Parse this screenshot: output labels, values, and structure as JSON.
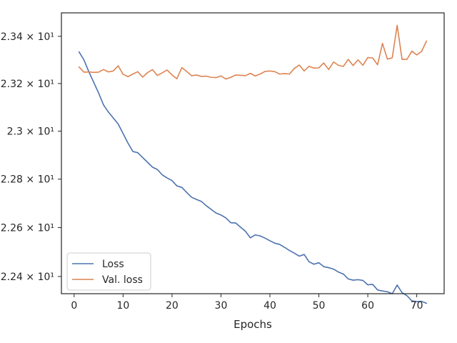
{
  "chart_data": {
    "type": "line",
    "xlabel": "Epochs",
    "ylabel": "",
    "y_scale": "log",
    "xlim": [
      -2.6,
      75.6
    ],
    "ylim": [
      22.33,
      23.5
    ],
    "x_ticks": [
      0,
      10,
      20,
      30,
      40,
      50,
      60,
      70
    ],
    "y_ticks": [
      {
        "value": 22.4,
        "label": "2.24 × 10¹"
      },
      {
        "value": 22.6,
        "label": "2.26 × 10¹"
      },
      {
        "value": 22.8,
        "label": "2.28 × 10¹"
      },
      {
        "value": 23.0,
        "label": "2.3 × 10¹"
      },
      {
        "value": 23.2,
        "label": "2.32 × 10¹"
      },
      {
        "value": 23.4,
        "label": "2.34 × 10¹"
      }
    ],
    "grid": false,
    "legend_position": "lower-left",
    "x": [
      1,
      2,
      3,
      4,
      5,
      6,
      7,
      8,
      9,
      10,
      11,
      12,
      13,
      14,
      15,
      16,
      17,
      18,
      19,
      20,
      21,
      22,
      23,
      24,
      25,
      26,
      27,
      28,
      29,
      30,
      31,
      32,
      33,
      34,
      35,
      36,
      37,
      38,
      39,
      40,
      41,
      42,
      43,
      44,
      45,
      46,
      47,
      48,
      49,
      50,
      51,
      52,
      53,
      54,
      55,
      56,
      57,
      58,
      59,
      60,
      61,
      62,
      63,
      64,
      65,
      66,
      67,
      68,
      69,
      70,
      71,
      72
    ],
    "series": [
      {
        "name": "Loss",
        "color": "#4c72b0",
        "values": [
          23.334,
          23.3,
          23.25,
          23.205,
          23.16,
          23.11,
          23.08,
          23.055,
          23.03,
          22.99,
          22.95,
          22.915,
          22.91,
          22.89,
          22.87,
          22.85,
          22.84,
          22.818,
          22.805,
          22.794,
          22.772,
          22.766,
          22.745,
          22.725,
          22.716,
          22.708,
          22.69,
          22.675,
          22.66,
          22.652,
          22.64,
          22.62,
          22.619,
          22.602,
          22.585,
          22.558,
          22.57,
          22.566,
          22.557,
          22.546,
          22.536,
          22.531,
          22.519,
          22.506,
          22.495,
          22.483,
          22.49,
          22.46,
          22.45,
          22.456,
          22.44,
          22.436,
          22.43,
          22.418,
          22.41,
          22.39,
          22.385,
          22.387,
          22.384,
          22.366,
          22.368,
          22.345,
          22.341,
          22.338,
          22.33,
          22.365,
          22.334,
          22.322,
          22.301,
          22.298,
          22.299,
          22.291
        ]
      },
      {
        "name": "Val. loss",
        "color": "#dd8452",
        "values": [
          23.27,
          23.248,
          23.249,
          23.247,
          23.248,
          23.259,
          23.249,
          23.253,
          23.275,
          23.239,
          23.229,
          23.24,
          23.25,
          23.227,
          23.246,
          23.259,
          23.234,
          23.245,
          23.257,
          23.236,
          23.22,
          23.267,
          23.251,
          23.233,
          23.236,
          23.23,
          23.231,
          23.226,
          23.225,
          23.232,
          23.219,
          23.226,
          23.236,
          23.235,
          23.233,
          23.243,
          23.232,
          23.24,
          23.251,
          23.253,
          23.25,
          23.24,
          23.242,
          23.24,
          23.264,
          23.278,
          23.253,
          23.273,
          23.265,
          23.266,
          23.287,
          23.259,
          23.291,
          23.277,
          23.272,
          23.302,
          23.276,
          23.3,
          23.277,
          23.31,
          23.308,
          23.279,
          23.37,
          23.303,
          23.309,
          23.447,
          23.302,
          23.302,
          23.337,
          23.321,
          23.336,
          23.38
        ]
      }
    ]
  }
}
